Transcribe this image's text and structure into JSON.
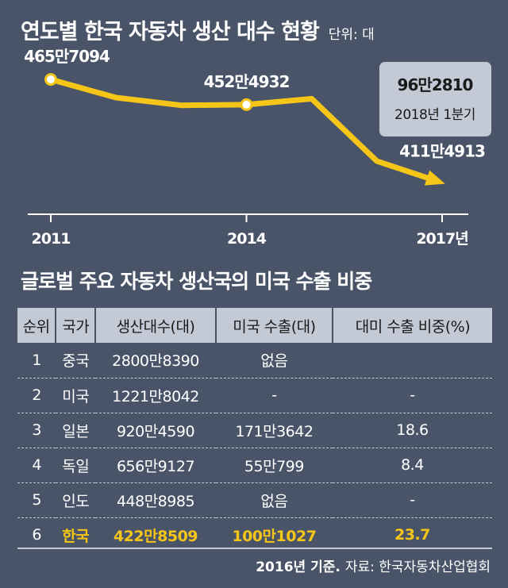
{
  "header": {
    "title": "연도별 한국 자동차 생산 대수 현황",
    "unit": "단위: 대"
  },
  "chart_data": {
    "type": "line",
    "title": "연도별 한국 자동차 생산 대수 현황",
    "unit": "단위: 대",
    "x_ticks": [
      "2011",
      "2014",
      "2017년"
    ],
    "series": [
      {
        "values": [
          {
            "x": 2011,
            "y": 4657094,
            "label": "465만7094"
          },
          {
            "x": 2012,
            "y": 4561766
          },
          {
            "x": 2013,
            "y": 4521429
          },
          {
            "x": 2014,
            "y": 4524932,
            "label": "452만4932"
          },
          {
            "x": 2015,
            "y": 4555957
          },
          {
            "x": 2016,
            "y": 4228509
          },
          {
            "x": 2017,
            "y": 4114913,
            "label": "411만4913"
          }
        ]
      }
    ],
    "callout": {
      "value": "96만2810",
      "caption": "2018년 1분기"
    },
    "ylim": [
      3950000,
      4720000
    ],
    "colors": {
      "line": "#f5c518",
      "axis": "#ffffff"
    }
  },
  "table": {
    "title": "글로벌 주요 자동차 생산국의 미국 수출 비중",
    "headers": [
      "순위",
      "국가",
      "생산대수(대)",
      "미국 수출(대)",
      "대미 수출 비중(%)"
    ],
    "rows": [
      [
        "1",
        "중국",
        "2800만8390",
        "없음",
        ""
      ],
      [
        "2",
        "미국",
        "1221만8042",
        "-",
        "-"
      ],
      [
        "3",
        "일본",
        "920만4590",
        "171만3642",
        "18.6"
      ],
      [
        "4",
        "독일",
        "656만9127",
        "55만799",
        "8.4"
      ],
      [
        "5",
        "인도",
        "448만8985",
        "없음",
        "-"
      ],
      [
        "6",
        "한국",
        "422만8509",
        "100만1027",
        "23.7"
      ]
    ],
    "highlight_row": 5,
    "highlight_color": "#f5c518"
  },
  "footer": {
    "basis": "2016년 기준.",
    "source": "자료: 한국자동차산업협회"
  }
}
